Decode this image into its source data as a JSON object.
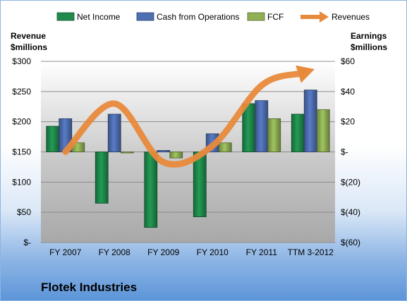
{
  "company_label": "Flotek Industries",
  "left_axis_title": [
    "Revenue",
    "$millions"
  ],
  "right_axis_title": [
    "Earnings",
    "$millions"
  ],
  "colors": {
    "net_income": "#1f8a4c",
    "cash_from_operations": "#4f6fb3",
    "fcf": "#8fb055",
    "revenues": "#e88a3c"
  },
  "chart_data": {
    "type": "bar",
    "categories": [
      "FY 2007",
      "FY 2008",
      "FY 2009",
      "FY 2010",
      "FY 2011",
      "TTM 3-2012"
    ],
    "series": [
      {
        "name": "Net Income",
        "key": "net_income",
        "axis": "right",
        "values": [
          17,
          -34,
          -50,
          -43,
          32,
          25
        ]
      },
      {
        "name": "Cash from Operations",
        "key": "cash_from_operations",
        "axis": "right",
        "values": [
          22,
          25,
          1,
          12,
          34,
          41
        ]
      },
      {
        "name": "FCF",
        "key": "fcf",
        "axis": "right",
        "values": [
          6,
          0,
          -4,
          6,
          22,
          28
        ]
      },
      {
        "name": "Revenues",
        "key": "revenues",
        "axis": "left",
        "type": "line",
        "arrow": true,
        "values": [
          150,
          230,
          133,
          160,
          260,
          285
        ]
      }
    ],
    "left_axis": {
      "ylim": [
        0,
        300
      ],
      "ticks": [
        "$-",
        "$50",
        "$100",
        "$150",
        "$200",
        "$250",
        "$300"
      ]
    },
    "right_axis": {
      "ylim": [
        -60,
        60
      ],
      "ticks": [
        "$(60)",
        "$(40)",
        "$(20)",
        "$-",
        "$20",
        "$40",
        "$60"
      ]
    },
    "grid": true,
    "legend_position": "top"
  }
}
